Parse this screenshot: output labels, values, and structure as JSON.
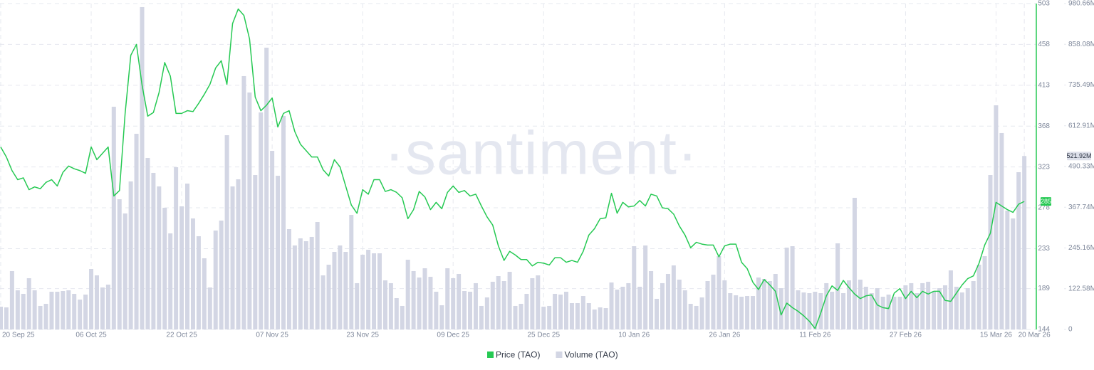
{
  "chart_data": {
    "type": "combo",
    "watermark": "·santiment·",
    "grid": true,
    "legend": "bottom",
    "categories": [
      "20 Sep 25",
      null,
      null,
      null,
      null,
      null,
      null,
      null,
      null,
      null,
      null,
      null,
      null,
      null,
      null,
      null,
      "06 Oct 25",
      null,
      null,
      null,
      null,
      null,
      null,
      null,
      null,
      null,
      null,
      null,
      null,
      null,
      null,
      null,
      "22 Oct 25",
      null,
      null,
      null,
      null,
      null,
      null,
      null,
      null,
      null,
      null,
      null,
      null,
      null,
      null,
      null,
      "07 Nov 25",
      null,
      null,
      null,
      null,
      null,
      null,
      null,
      null,
      null,
      null,
      null,
      null,
      null,
      null,
      null,
      "23 Nov 25",
      null,
      null,
      null,
      null,
      null,
      null,
      null,
      null,
      null,
      null,
      null,
      null,
      null,
      null,
      null,
      "09 Dec 25",
      null,
      null,
      null,
      null,
      null,
      null,
      null,
      null,
      null,
      null,
      null,
      null,
      null,
      null,
      null,
      "25 Dec 25",
      null,
      null,
      null,
      null,
      null,
      null,
      null,
      null,
      null,
      null,
      null,
      null,
      null,
      null,
      null,
      "10 Jan 26",
      null,
      null,
      null,
      null,
      null,
      null,
      null,
      null,
      null,
      null,
      null,
      null,
      null,
      null,
      null,
      "26 Jan 26",
      null,
      null,
      null,
      null,
      null,
      null,
      null,
      null,
      null,
      null,
      null,
      null,
      null,
      null,
      null,
      "11 Feb 26",
      null,
      null,
      null,
      null,
      null,
      null,
      null,
      null,
      null,
      null,
      null,
      null,
      null,
      null,
      null,
      "27 Feb 26",
      null,
      null,
      null,
      null,
      null,
      null,
      null,
      null,
      null,
      null,
      null,
      null,
      null,
      null,
      null,
      "15 Mar 26",
      null,
      null,
      null,
      null,
      "20 Mar 26"
    ],
    "ylim": [
      0,
      980.66
    ],
    "yticks": [
      0,
      {
        "value": 122.58,
        "label": "122.58M"
      },
      {
        "value": 245.16,
        "label": "245.16M"
      },
      {
        "value": 367.74,
        "label": "367.74M"
      },
      {
        "value": 490.33,
        "label": "490.33M"
      },
      {
        "value": 612.91,
        "label": "612.91M"
      },
      {
        "value": 735.49,
        "label": "735.49M"
      },
      {
        "value": 858.08,
        "label": "858.08M"
      },
      {
        "value": 980.66,
        "label": "980.66M"
      }
    ],
    "y2lim": [
      144,
      503
    ],
    "y2ticks": [
      144,
      189,
      233,
      278,
      323,
      368,
      413,
      458,
      503
    ],
    "series": [
      {
        "name": "Price (TAO)",
        "type": "line",
        "axis": "y2",
        "color": "#26c953",
        "current_label": "285",
        "values": [
          345,
          334,
          319,
          309,
          311,
          298,
          301,
          299,
          306,
          309,
          302,
          317,
          324,
          321,
          319,
          316,
          345,
          331,
          338,
          345,
          291,
          297,
          382,
          446,
          458,
          413,
          379,
          383,
          405,
          438,
          423,
          382,
          382,
          385,
          384,
          393,
          403,
          414,
          432,
          440,
          414,
          481,
          497,
          490,
          464,
          400,
          385,
          391,
          399,
          367,
          382,
          385,
          362,
          348,
          341,
          334,
          334,
          320,
          313,
          331,
          323,
          302,
          281,
          272,
          298,
          293,
          309,
          309,
          296,
          298,
          295,
          289,
          266,
          276,
          296,
          290,
          276,
          284,
          277,
          295,
          302,
          295,
          297,
          291,
          293,
          280,
          268,
          259,
          236,
          220,
          230,
          226,
          221,
          221,
          214,
          218,
          217,
          215,
          223,
          223,
          218,
          220,
          218,
          230,
          248,
          255,
          266,
          267,
          294,
          272,
          284,
          279,
          280,
          286,
          280,
          293,
          291,
          278,
          277,
          271,
          258,
          248,
          234,
          240,
          238,
          237,
          237,
          224,
          236,
          238,
          238,
          218,
          211,
          196,
          188,
          199,
          193,
          186,
          160,
          173,
          168,
          164,
          159,
          153,
          145,
          162,
          181,
          192,
          187,
          198,
          190,
          183,
          178,
          181,
          182,
          171,
          168,
          167,
          184,
          189,
          178,
          186,
          179,
          186,
          183,
          186,
          186,
          176,
          175,
          184,
          193,
          200,
          203,
          217,
          237,
          250,
          284,
          280,
          276,
          273,
          282,
          285
        ]
      },
      {
        "name": "Volume (TAO)",
        "type": "bar",
        "axis": "y",
        "color": "#d3d6e4",
        "current_label": "521.92M",
        "values": [
          68.5,
          66.4,
          175.6,
          117.8,
          107.1,
          154.2,
          117.8,
          70.7,
          77.1,
          113.5,
          113.5,
          115.6,
          117.8,
          107.1,
          89.9,
          104.9,
          182.0,
          162.7,
          126.3,
          134.9,
          670.2,
          391.8,
          349.0,
          445.4,
          588.8,
          970.0,
          516.0,
          471.1,
          430.4,
          366.1,
          289.1,
          488.2,
          370.4,
          438.9,
          334.0,
          280.5,
          214.1,
          126.3,
          297.6,
          327.6,
          584.5,
          430.4,
          451.8,
          762.3,
          713.0,
          464.6,
          653.1,
          847.9,
          537.4,
          462.5,
          642.4,
          301.9,
          252.7,
          274.1,
          265.5,
          278.4,
          323.3,
          162.7,
          194.8,
          233.4,
          252.7,
          233.4,
          344.7,
          139.2,
          224.8,
          239.8,
          229.1,
          229.1,
          147.7,
          139.2,
          94.2,
          70.7,
          209.8,
          175.6,
          156.3,
          184.1,
          158.4,
          113.5,
          72.8,
          184.1,
          154.2,
          167.0,
          115.6,
          113.5,
          139.2,
          70.7,
          96.4,
          143.5,
          160.6,
          145.6,
          173.4,
          70.7,
          77.1,
          107.1,
          154.2,
          162.7,
          68.5,
          70.7,
          107.1,
          104.9,
          113.5,
          79.2,
          79.2,
          100.6,
          79.2,
          60.0,
          66.4,
          64.2,
          141.3,
          119.9,
          128.5,
          139.2,
          250.5,
          128.5,
          252.7,
          175.6,
          92.1,
          139.2,
          167.0,
          192.7,
          149.9,
          117.8,
          77.1,
          70.7,
          96.4,
          145.6,
          164.9,
          220.5,
          147.7,
          109.2,
          102.8,
          98.5,
          100.6,
          100.6,
          156.3,
          152.0,
          145.6,
          167.0,
          124.2,
          246.2,
          250.5,
          117.8,
          111.3,
          109.2,
          113.5,
          109.2,
          139.2,
          113.5,
          259.1,
          109.2,
          147.7,
          396.1,
          149.9,
          128.5,
          109.2,
          124.2,
          98.5,
          104.9,
          98.5,
          98.5,
          132.8,
          139.2,
          109.2,
          139.2,
          143.5,
          115.6,
          124.2,
          132.8,
          177.7,
          128.5,
          111.3,
          124.2,
          145.6,
          194.8,
          220.5,
          464.6,
          674.5,
          591.0,
          357.6,
          334.0,
          473.2,
          521.92
        ]
      }
    ]
  }
}
